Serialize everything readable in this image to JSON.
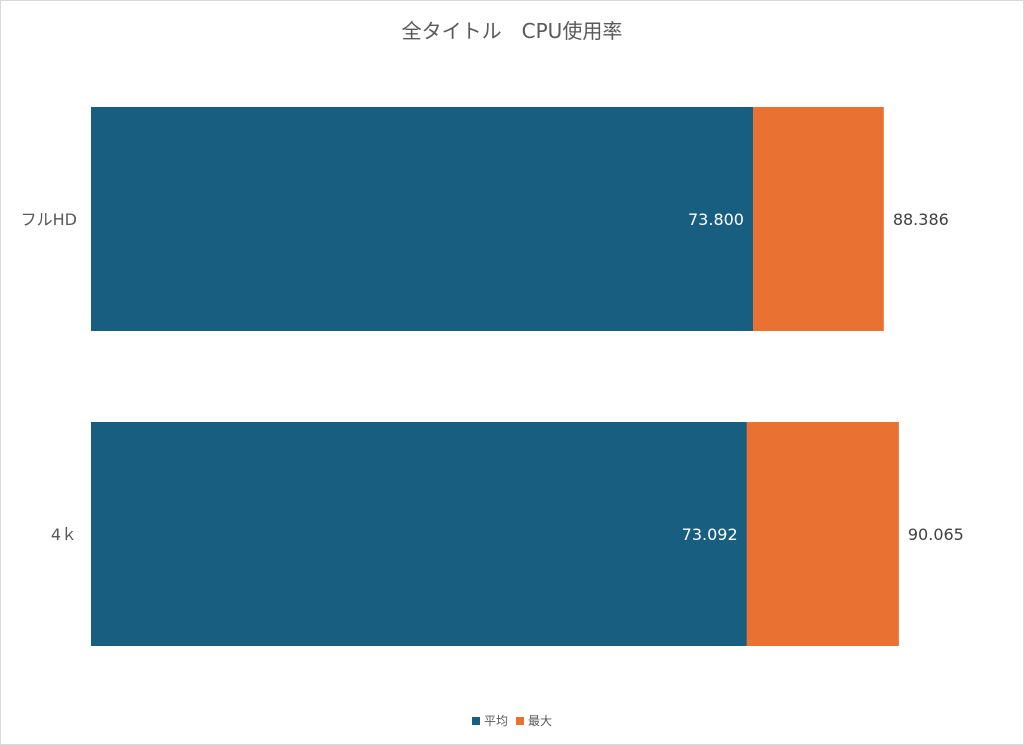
{
  "chart_data": {
    "type": "bar",
    "orientation": "horizontal",
    "title": "全タイトル　CPU使用率",
    "categories": [
      "フルHD",
      "4ｋ"
    ],
    "series": [
      {
        "name": "平均",
        "color": "#175e81",
        "values": [
          73.8,
          73.092
        ],
        "labels": [
          "73.800",
          "73.092"
        ]
      },
      {
        "name": "最大",
        "color": "#e97132",
        "values": [
          88.386,
          90.065
        ],
        "labels": [
          "88.386",
          "90.065"
        ]
      }
    ],
    "xlim": [
      0,
      100
    ],
    "grid": false,
    "legend": "bottom"
  }
}
